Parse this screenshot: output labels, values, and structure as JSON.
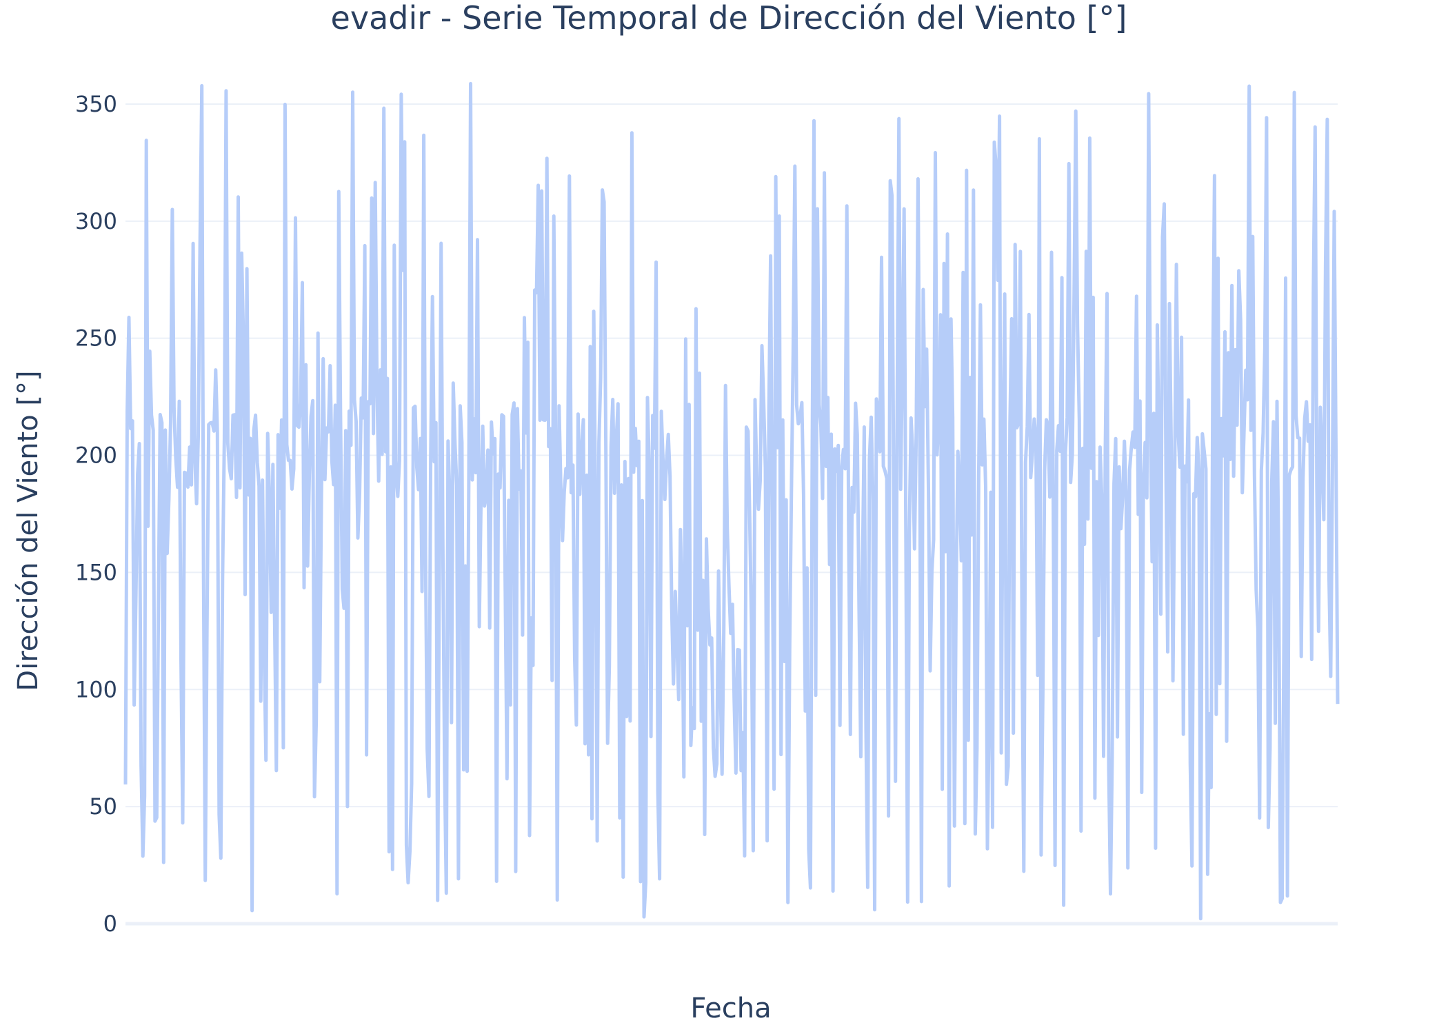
{
  "chart_data": {
    "type": "line",
    "title": "evadir - Serie Temporal de Dirección del Viento [°]",
    "xlabel": "Fecha",
    "ylabel": "Dirección del Viento [°]",
    "ylim": [
      0,
      365
    ],
    "yticks": [
      0,
      50,
      100,
      150,
      200,
      250,
      300,
      350
    ],
    "grid": true,
    "series_color": "#b6cdf9",
    "point_count": 700,
    "dense_band": [
      180,
      225
    ],
    "value_range": [
      0,
      360
    ],
    "low_variability_window": [
      0.45,
      0.51
    ]
  }
}
